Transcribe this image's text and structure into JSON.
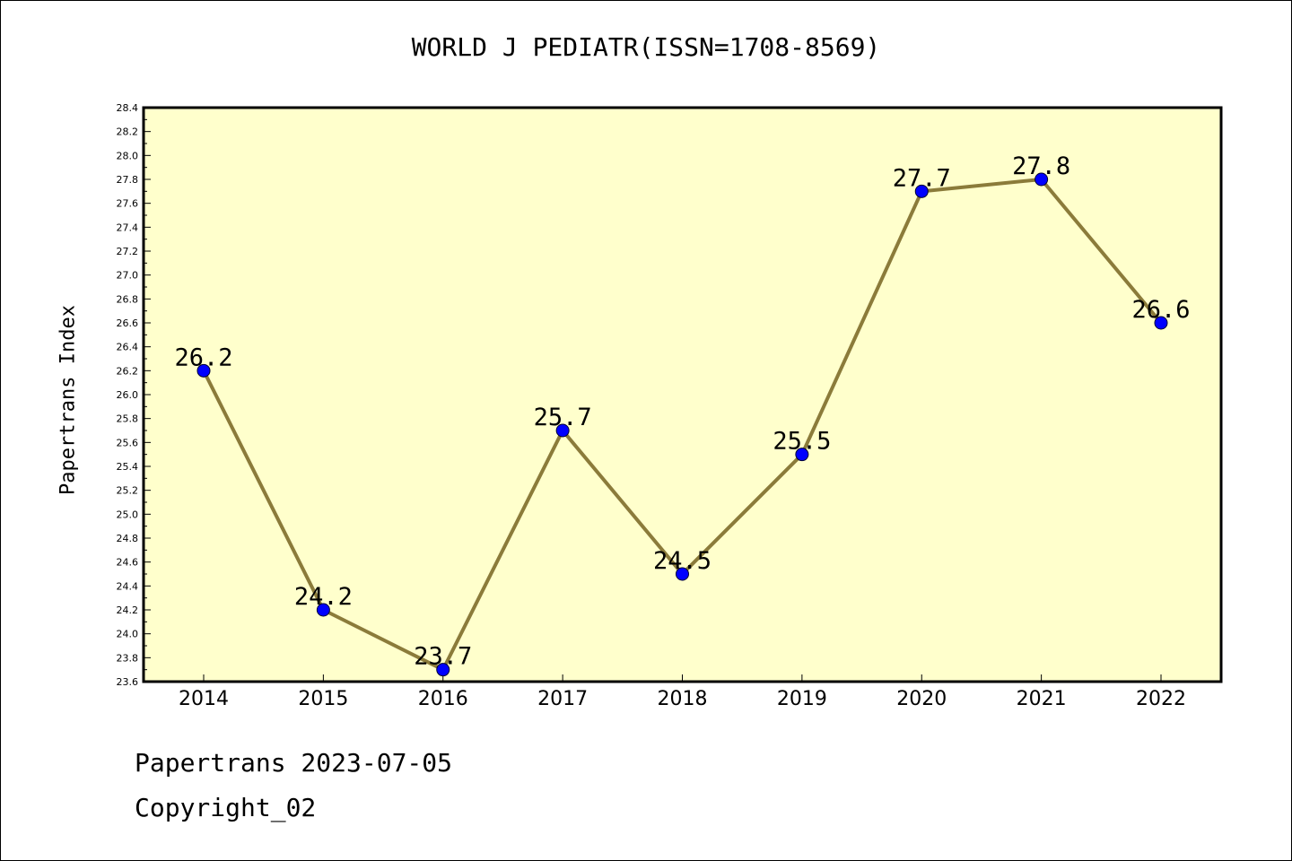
{
  "title": "WORLD J PEDIATR(ISSN=1708-8569)",
  "colors": {
    "plot_background": "#ffffcc",
    "line": "#8b7b3a",
    "marker": "#0000ff"
  },
  "footer": {
    "line1": "Papertrans 2023-07-05",
    "line2": "Copyright_02"
  },
  "chart_data": {
    "type": "line",
    "title": "WORLD J PEDIATR(ISSN=1708-8569)",
    "xlabel": "",
    "ylabel": "Papertrans Index",
    "categories": [
      "2014",
      "2015",
      "2016",
      "2017",
      "2018",
      "2019",
      "2020",
      "2021",
      "2022"
    ],
    "series": [
      {
        "values": [
          26.2,
          24.2,
          23.7,
          25.7,
          24.5,
          25.5,
          27.7,
          27.8,
          26.6
        ],
        "data_labels": [
          "26.2",
          "24.2",
          "23.7",
          "25.7",
          "24.5",
          "25.5",
          "27.7",
          "27.8",
          "26.6"
        ]
      }
    ],
    "ylim": [
      23.6,
      28.4
    ],
    "yticks": [
      "23.6",
      "23.8",
      "24.0",
      "24.2",
      "24.4",
      "24.6",
      "24.8",
      "25.0",
      "25.2",
      "25.4",
      "25.6",
      "25.8",
      "26.0",
      "26.2",
      "26.4",
      "26.6",
      "26.8",
      "27.0",
      "27.2",
      "27.4",
      "27.6",
      "27.8",
      "28.0",
      "28.2",
      "28.4"
    ],
    "grid": false,
    "legend": "none"
  }
}
